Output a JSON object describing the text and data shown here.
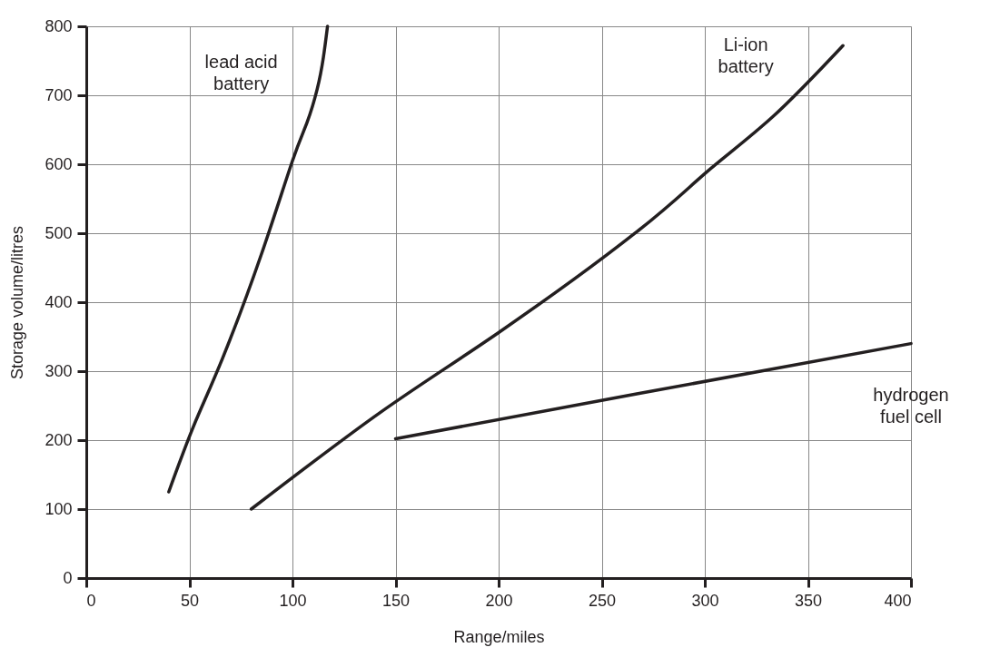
{
  "chart_data": {
    "type": "line",
    "xlabel": "Range/miles",
    "ylabel": "Storage volume/litres",
    "xlim": [
      0,
      400
    ],
    "ylim": [
      0,
      800
    ],
    "xticks": [
      0,
      50,
      100,
      150,
      200,
      250,
      300,
      350,
      400
    ],
    "yticks": [
      0,
      100,
      200,
      300,
      400,
      500,
      600,
      700,
      800
    ],
    "grid": true,
    "legend": false,
    "marker": "none",
    "line_style": "solid",
    "series": [
      {
        "name": "lead acid battery",
        "color": "#231f20",
        "x": [
          40,
          52,
          66,
          85,
          100,
          107,
          112,
          115,
          117
        ],
        "values": [
          125,
          220,
          318,
          470,
          605,
          660,
          709,
          755,
          800
        ]
      },
      {
        "name": "Li-ion battery",
        "color": "#231f20",
        "x": [
          80,
          143,
          200,
          267,
          301,
          333,
          367
        ],
        "values": [
          100,
          241,
          356,
          502,
          589,
          669,
          772
        ]
      },
      {
        "name": "hydrogen fuel cell",
        "color": "#231f20",
        "x": [
          150,
          267,
          400
        ],
        "values": [
          202,
          267,
          340
        ]
      }
    ]
  }
}
